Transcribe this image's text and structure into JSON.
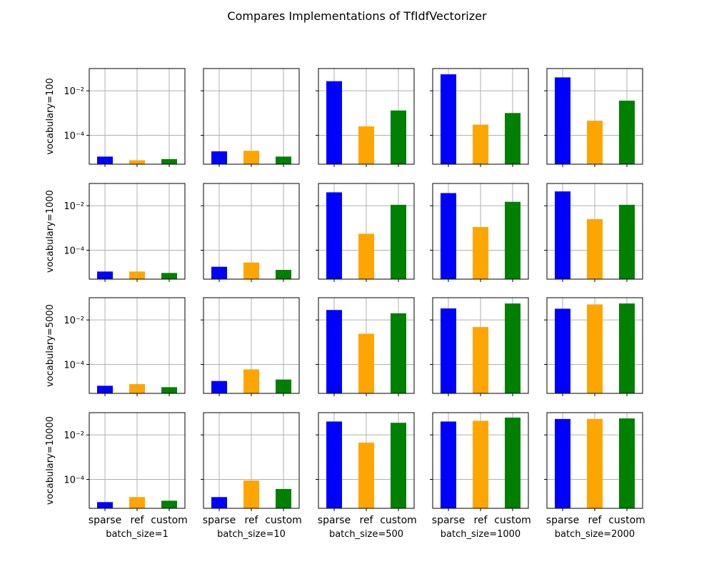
{
  "title": "Compares Implementations of TfIdfVectorizer",
  "colors": {
    "sparse": "#0000ff",
    "ref": "#ffa500",
    "custom": "#008000",
    "grid": "#b0b0b0",
    "frame": "#000000"
  },
  "chart_data": {
    "type": "bar",
    "title": "Compares Implementations of TfIdfVectorizer",
    "yscale": "log",
    "ylim": [
      5e-06,
      0.1
    ],
    "grid": true,
    "categories": [
      "sparse",
      "ref",
      "custom"
    ],
    "ytick_values": [
      0.0001,
      0.01
    ],
    "ytick_labels": [
      "10⁻⁴",
      "10⁻²"
    ],
    "col_labels": [
      "batch_size=1",
      "batch_size=10",
      "batch_size=500",
      "batch_size=1000",
      "batch_size=2000"
    ],
    "row_labels": [
      "vocabulary=100",
      "vocabulary=1000",
      "vocabulary=5000",
      "vocabulary=10000"
    ],
    "panels": [
      [
        {
          "values": [
            1.1e-05,
            7.5e-06,
            8.5e-06
          ]
        },
        {
          "values": [
            1.9e-05,
            2e-05,
            1.1e-05
          ]
        },
        {
          "values": [
            0.027,
            0.00025,
            0.0013
          ]
        },
        {
          "values": [
            0.055,
            0.0003,
            0.001
          ]
        },
        {
          "values": [
            0.04,
            0.00045,
            0.0036
          ]
        }
      ],
      [
        {
          "values": [
            1.1e-05,
            1.1e-05,
            9.5e-06
          ]
        },
        {
          "values": [
            1.8e-05,
            2.8e-05,
            1.3e-05
          ]
        },
        {
          "values": [
            0.04,
            0.00055,
            0.011
          ]
        },
        {
          "values": [
            0.037,
            0.0011,
            0.015
          ]
        },
        {
          "values": [
            0.044,
            0.0025,
            0.011
          ]
        }
      ],
      [
        {
          "values": [
            1.1e-05,
            1.3e-05,
            9.5e-06
          ]
        },
        {
          "values": [
            1.8e-05,
            6e-05,
            2.1e-05
          ]
        },
        {
          "values": [
            0.028,
            0.0024,
            0.02
          ]
        },
        {
          "values": [
            0.033,
            0.0048,
            0.055
          ]
        },
        {
          "values": [
            0.032,
            0.05,
            0.055
          ]
        }
      ],
      [
        {
          "values": [
            9.5e-06,
            1.6e-05,
            1.1e-05
          ]
        },
        {
          "values": [
            1.6e-05,
            8.9e-05,
            3.7e-05
          ]
        },
        {
          "values": [
            0.04,
            0.0045,
            0.035
          ]
        },
        {
          "values": [
            0.04,
            0.043,
            0.06
          ]
        },
        {
          "values": [
            0.052,
            0.052,
            0.055
          ]
        }
      ]
    ]
  }
}
